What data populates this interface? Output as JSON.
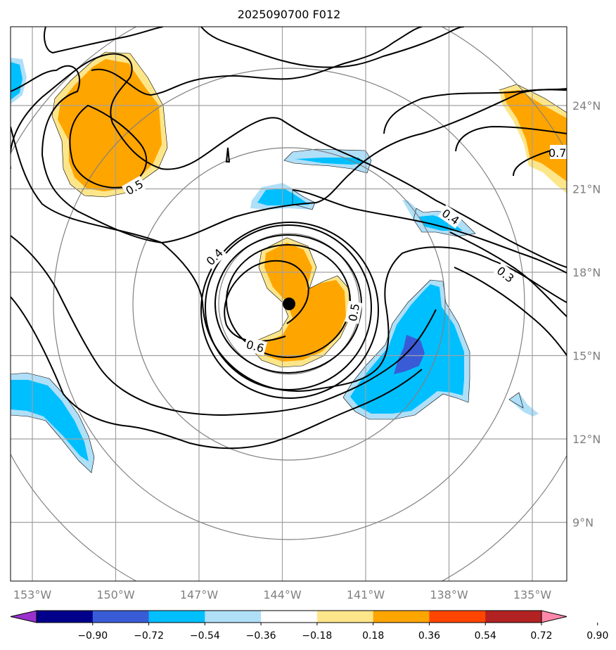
{
  "chart_data": {
    "type": "contour",
    "title": "2025090700 F012",
    "x_ticks": [
      "153°W",
      "150°W",
      "147°W",
      "144°W",
      "141°W",
      "138°W",
      "135°W"
    ],
    "y_ticks": [
      "24°N",
      "21°N",
      "18°N",
      "15°N",
      "12°N",
      "9°N"
    ],
    "xlim": [
      -154,
      -134
    ],
    "ylim": [
      7,
      27
    ],
    "grid": true,
    "center_marker": {
      "lon": -143.9,
      "lat": 16.8
    },
    "range_rings_count": 4,
    "contour_lines": {
      "color": "#000000",
      "labels": [
        "0.4",
        "0.5",
        "0.6",
        "0.3",
        "0.4",
        "0.5",
        "0.7"
      ]
    },
    "filled_field": {
      "levels": [
        -0.9,
        -0.72,
        -0.54,
        -0.36,
        -0.18,
        0.18,
        0.36,
        0.54,
        0.72,
        0.9
      ],
      "colorbar_tick_labels": [
        "−0.90",
        "−0.72",
        "−0.54",
        "−0.36",
        "−0.18",
        "0.18",
        "0.36",
        "0.54",
        "0.72",
        "0.90"
      ],
      "colors": [
        "#9932cc",
        "#00008b",
        "#3a5bd6",
        "#00bfff",
        "#b0dff8",
        "#ffffff",
        "#fde68a",
        "#ffa500",
        "#ff4500",
        "#b22222",
        "#ff88aa"
      ],
      "extend": "both"
    }
  }
}
